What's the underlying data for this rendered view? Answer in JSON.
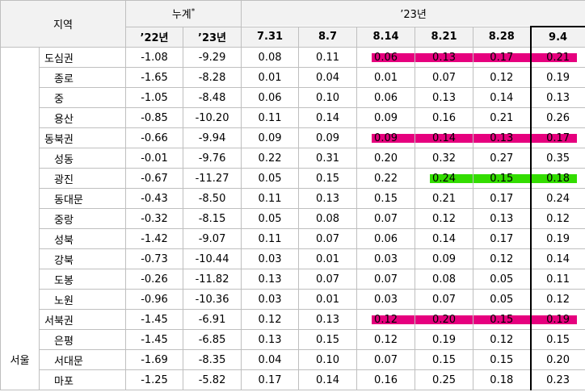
{
  "header": {
    "region": "지역",
    "cumulative": {
      "label": "누계",
      "mark": "*"
    },
    "year_group": "’23년",
    "cumulative_cols": [
      "’22년",
      "’23년"
    ],
    "weeks": [
      "7.31",
      "8.7",
      "8.14",
      "8.21",
      "8.28",
      "9.4"
    ]
  },
  "city": "서울",
  "rows": [
    {
      "name": "도심권",
      "group": true,
      "values": [
        "-1.08",
        "-9.29",
        "0.08",
        "0.11",
        "0.06",
        "0.13",
        "0.17",
        "0.21"
      ],
      "highlight": {
        "color": "#e6007e",
        "start": "8.14"
      }
    },
    {
      "name": "종로",
      "values": [
        "-1.65",
        "-8.28",
        "0.01",
        "0.04",
        "0.01",
        "0.07",
        "0.12",
        "0.19"
      ]
    },
    {
      "name": "중",
      "values": [
        "-1.05",
        "-8.48",
        "0.06",
        "0.10",
        "0.06",
        "0.13",
        "0.14",
        "0.13"
      ]
    },
    {
      "name": "용산",
      "values": [
        "-0.85",
        "-10.20",
        "0.11",
        "0.14",
        "0.09",
        "0.16",
        "0.21",
        "0.26"
      ]
    },
    {
      "name": "동북권",
      "group": true,
      "values": [
        "-0.66",
        "-9.94",
        "0.09",
        "0.09",
        "0.09",
        "0.14",
        "0.13",
        "0.17"
      ],
      "highlight": {
        "color": "#e6007e",
        "start": "8.14"
      }
    },
    {
      "name": "성동",
      "values": [
        "-0.01",
        "-9.76",
        "0.22",
        "0.31",
        "0.20",
        "0.32",
        "0.27",
        "0.35"
      ]
    },
    {
      "name": "광진",
      "values": [
        "-0.67",
        "-11.27",
        "0.05",
        "0.15",
        "0.22",
        "0.24",
        "0.15",
        "0.18"
      ],
      "highlight": {
        "color": "#33dd00",
        "start": "8.21"
      }
    },
    {
      "name": "동대문",
      "values": [
        "-0.43",
        "-8.50",
        "0.11",
        "0.13",
        "0.15",
        "0.21",
        "0.17",
        "0.24"
      ]
    },
    {
      "name": "중랑",
      "values": [
        "-0.32",
        "-8.15",
        "0.05",
        "0.08",
        "0.07",
        "0.12",
        "0.13",
        "0.12"
      ]
    },
    {
      "name": "성북",
      "values": [
        "-1.42",
        "-9.07",
        "0.11",
        "0.07",
        "0.06",
        "0.14",
        "0.17",
        "0.19"
      ]
    },
    {
      "name": "강북",
      "values": [
        "-0.73",
        "-10.44",
        "0.03",
        "0.01",
        "0.03",
        "0.09",
        "0.12",
        "0.14"
      ]
    },
    {
      "name": "도봉",
      "values": [
        "-0.26",
        "-11.82",
        "0.13",
        "0.07",
        "0.07",
        "0.08",
        "0.05",
        "0.11"
      ]
    },
    {
      "name": "노원",
      "values": [
        "-0.96",
        "-10.36",
        "0.03",
        "0.01",
        "0.03",
        "0.07",
        "0.05",
        "0.12"
      ]
    },
    {
      "name": "서북권",
      "group": true,
      "values": [
        "-1.45",
        "-6.91",
        "0.12",
        "0.13",
        "0.12",
        "0.20",
        "0.15",
        "0.19"
      ],
      "highlight": {
        "color": "#e6007e",
        "start": "8.14"
      }
    },
    {
      "name": "은평",
      "values": [
        "-1.45",
        "-6.85",
        "0.13",
        "0.15",
        "0.12",
        "0.19",
        "0.12",
        "0.15"
      ]
    },
    {
      "name": "서대문",
      "values": [
        "-1.69",
        "-8.35",
        "0.04",
        "0.10",
        "0.07",
        "0.15",
        "0.15",
        "0.20"
      ]
    },
    {
      "name": "마포",
      "values": [
        "-1.25",
        "-5.82",
        "0.17",
        "0.14",
        "0.16",
        "0.25",
        "0.18",
        "0.23"
      ]
    }
  ]
}
